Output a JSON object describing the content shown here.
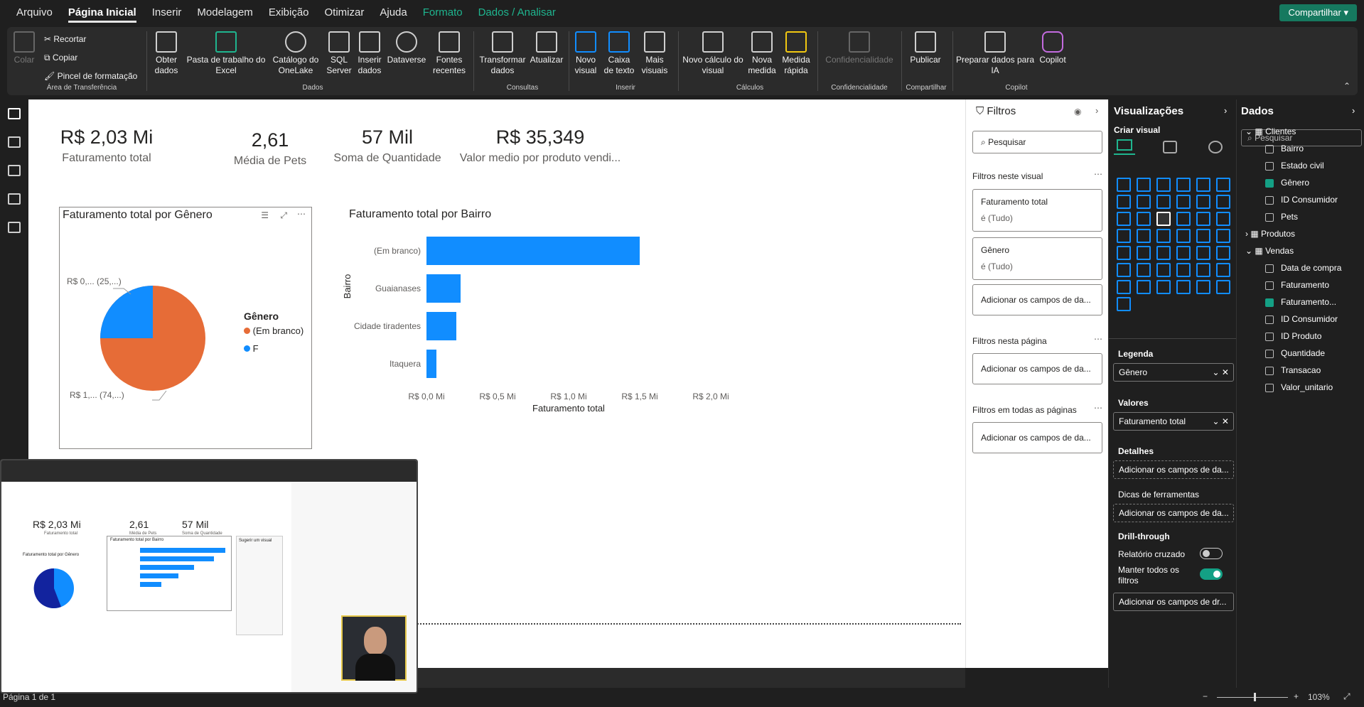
{
  "menu": {
    "items": [
      "Arquivo",
      "Página Inicial",
      "Inserir",
      "Modelagem",
      "Exibição",
      "Otimizar",
      "Ajuda",
      "Formato",
      "Dados / Analisar"
    ],
    "active": "Página Inicial",
    "share_label": "Compartilhar"
  },
  "ribbon": {
    "clipboard": {
      "paste": "Colar",
      "cut": "Recortar",
      "copy": "Copiar",
      "format_painter": "Pincel de formatação",
      "group": "Área de Transferência"
    },
    "data": {
      "get_data": "Obter dados",
      "excel": "Pasta de trabalho do Excel",
      "onelake": "Catálogo do OneLake",
      "sql": "SQL Server",
      "enter_data": "Inserir dados",
      "dataverse": "Dataverse",
      "recent": "Fontes recentes",
      "group": "Dados"
    },
    "queries": {
      "transform": "Transformar dados",
      "refresh": "Atualizar",
      "group": "Consultas"
    },
    "insert": {
      "new_visual": "Novo visual",
      "text_box": "Caixa de texto",
      "more_visuals": "Mais visuais",
      "group": "Inserir"
    },
    "calc": {
      "new_calc": "Novo cálculo do visual",
      "new_measure": "Nova medida",
      "quick_measure": "Medida rápida",
      "group": "Cálculos"
    },
    "sensitivity": {
      "label": "Confidencialidade",
      "group": "Confidencialidade"
    },
    "share": {
      "publish": "Publicar",
      "group": "Compartilhar"
    },
    "copilot": {
      "prepare": "Preparar dados para IA",
      "copilot": "Copilot",
      "group": "Copilot"
    }
  },
  "cards": [
    {
      "value": "R$ 2,03 Mi",
      "label": "Faturamento total"
    },
    {
      "value": "2,61",
      "label": "Média de Pets"
    },
    {
      "value": "57 Mil",
      "label": "Soma de Quantidade"
    },
    {
      "value": "R$ 35,349",
      "label": "Valor medio por produto vendi..."
    }
  ],
  "pie": {
    "title": "Faturamento total por Gênero",
    "legend_title": "Gênero",
    "label_small": "R$ 0,... (25,...)",
    "label_large": "R$ 1,... (74,...)",
    "legend": [
      {
        "name": "(Em branco)",
        "color": "#e66c37"
      },
      {
        "name": "F",
        "color": "#118dff"
      }
    ]
  },
  "chart_data": {
    "type": "bar",
    "title": "Faturamento total por Bairro",
    "xlabel": "Faturamento total",
    "ylabel": "Bairro",
    "categories": [
      "(Em branco)",
      "Guaianases",
      "Cidade tiradentes",
      "Itaquera"
    ],
    "values": [
      1.5,
      0.24,
      0.21,
      0.07
    ],
    "xlim": [
      0,
      2.0
    ],
    "ticks": [
      "R$ 0,0 Mi",
      "R$ 0,5 Mi",
      "R$ 1,0 Mi",
      "R$ 1,5 Mi",
      "R$ 2,0 Mi"
    ],
    "color": "#118dff"
  },
  "filters": {
    "title": "Filtros",
    "search": "Pesquisar",
    "on_visual": "Filtros neste visual",
    "f1_name": "Faturamento total",
    "f1_val": "é (Tudo)",
    "f2_name": "Gênero",
    "f2_val": "é (Tudo)",
    "add": "Adicionar os campos de da...",
    "on_page": "Filtros nesta página",
    "all_pages": "Filtros em todas as páginas"
  },
  "viz": {
    "title": "Visualizações",
    "build": "Criar visual",
    "legend_label": "Legenda",
    "legend_field": "Gênero",
    "values_label": "Valores",
    "values_field": "Faturamento total",
    "details": "Detalhes",
    "details_add": "Adicionar os campos de da...",
    "tooltips": "Dicas de ferramentas",
    "tooltips_add": "Adicionar os campos de da...",
    "drill": "Drill-through",
    "cross_report": "Relatório cruzado",
    "keep_filters": "Manter todos os filtros",
    "drill_add": "Adicionar os campos de dr..."
  },
  "dados": {
    "title": "Dados",
    "search": "Pesquisar",
    "tables": [
      {
        "name": "Clientes",
        "fields": [
          "Bairro",
          "Estado civil",
          "Gênero",
          "ID Consumidor",
          "Pets"
        ]
      },
      {
        "name": "Produtos"
      },
      {
        "name": "Vendas",
        "fields": [
          "Data de compra",
          "Faturamento",
          "Faturamento...",
          "ID Consumidor",
          "ID Produto",
          "Quantidade",
          "Transacao",
          "Valor_unitario"
        ]
      }
    ]
  },
  "status": {
    "page": "Página 1 de 1",
    "zoom": "103%"
  },
  "pip": {
    "card1": "R$ 2,03 Mi",
    "card1_label": "Faturamento total",
    "card2": "2,61",
    "card2_label": "Média de Pets",
    "card3": "57 Mil",
    "card3_label": "Soma de Quantidade",
    "pie_title": "Faturamento total por Gênero",
    "bar_title": "Faturamento total por Bairro",
    "suggest": "Sugerir um visual"
  }
}
